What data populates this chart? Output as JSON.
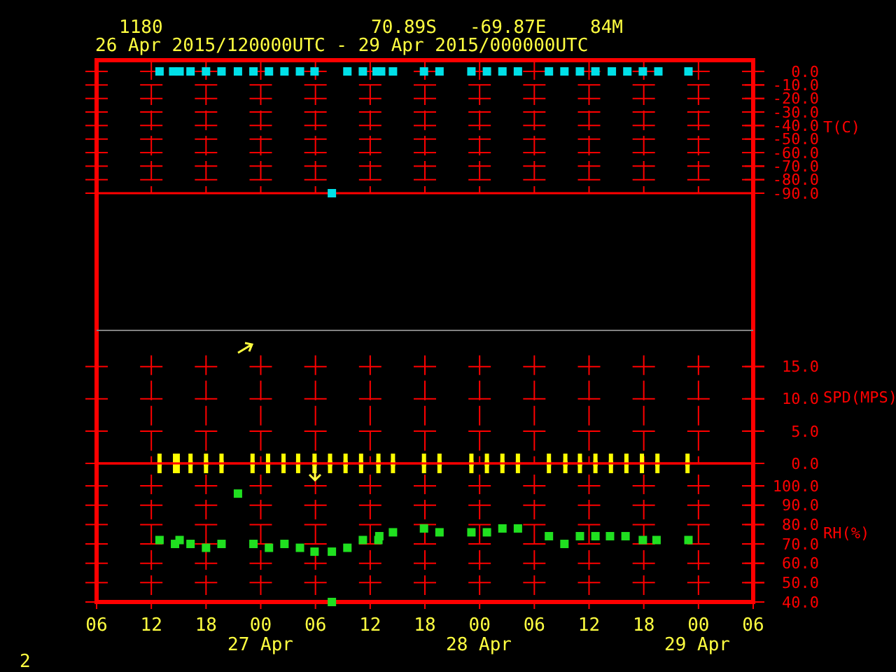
{
  "chart_data": [
    {
      "type": "scatter",
      "title": "1180",
      "subtitle": "26 Apr 2015/120000UTC - 29 Apr 2015/000000UTC",
      "annotations": [
        "70.89S   -69.87E    84M"
      ],
      "ylabel": "T(C)",
      "xlim": [
        6,
        78
      ],
      "xticks": [
        {
          "value": 6,
          "label": null
        },
        {
          "value": 12,
          "label": null
        },
        {
          "value": 18,
          "label": null
        },
        {
          "value": 24,
          "label": null
        },
        {
          "value": 30,
          "label": null
        },
        {
          "value": 36,
          "label": null
        },
        {
          "value": 42,
          "label": null
        },
        {
          "value": 48,
          "label": null
        },
        {
          "value": 54,
          "label": null
        },
        {
          "value": 60,
          "label": null
        },
        {
          "value": 66,
          "label": null
        },
        {
          "value": 72,
          "label": null
        },
        {
          "value": 78,
          "label": null
        }
      ],
      "ylim": [
        -90,
        8.3
      ],
      "yticks": [
        {
          "value": 0,
          "label": "0.0"
        },
        {
          "value": -10,
          "label": "-10.0"
        },
        {
          "value": -20,
          "label": "-20.0"
        },
        {
          "value": -30,
          "label": "-30.0"
        },
        {
          "value": -40,
          "label": "-40.0"
        },
        {
          "value": -50,
          "label": "-50.0"
        },
        {
          "value": -60,
          "label": "-60.0"
        },
        {
          "value": -70,
          "label": "-70.0"
        },
        {
          "value": -80,
          "label": "-80.0"
        },
        {
          "value": -90,
          "label": "-90.0"
        }
      ],
      "tick_labels": "y",
      "grid": true,
      "marker": "square",
      "series": [
        {
          "color": "#00e0e8",
          "x": [
            12.9,
            14.4,
            15.1,
            16.3,
            18.0,
            19.7,
            21.5,
            23.2,
            24.9,
            26.6,
            28.3,
            29.9,
            31.8,
            33.5,
            35.2,
            36.7,
            37.2,
            38.5,
            41.9,
            43.6,
            47.1,
            48.8,
            50.5,
            52.2,
            55.6,
            57.3,
            59.0,
            60.7,
            62.5,
            64.2,
            65.9,
            67.6,
            70.9
          ],
          "values": [
            0,
            0,
            0,
            0,
            0,
            0,
            0,
            0,
            0,
            0,
            0,
            0,
            -90,
            0,
            0,
            0,
            0,
            0,
            0,
            0,
            0,
            0,
            0,
            0,
            0,
            0,
            0,
            0,
            0,
            0,
            0,
            0,
            0
          ]
        }
      ]
    },
    {
      "type": "scatter",
      "ylabel": "SPD(MPS)",
      "xlim": [
        6,
        78
      ],
      "xticks": [
        {
          "value": 6,
          "label": null
        },
        {
          "value": 12,
          "label": null
        },
        {
          "value": 18,
          "label": null
        },
        {
          "value": 24,
          "label": null
        },
        {
          "value": 30,
          "label": null
        },
        {
          "value": 36,
          "label": null
        },
        {
          "value": 42,
          "label": null
        },
        {
          "value": 48,
          "label": null
        },
        {
          "value": 54,
          "label": null
        },
        {
          "value": 60,
          "label": null
        },
        {
          "value": 66,
          "label": null
        },
        {
          "value": 72,
          "label": null
        },
        {
          "value": 78,
          "label": null
        }
      ],
      "ylim": [
        0,
        20.6
      ],
      "yticks": [
        {
          "value": 0,
          "label": "0.0"
        },
        {
          "value": 5,
          "label": "5.0"
        },
        {
          "value": 10,
          "label": "10.0"
        },
        {
          "value": 15,
          "label": "15.0"
        }
      ],
      "tick_labels": "y",
      "grid": true,
      "series": [
        {
          "color": "#ffff00",
          "x": [
            12.9,
            14.6,
            14.9,
            16.3,
            18.0,
            19.7,
            23.1,
            24.8,
            26.5,
            28.1,
            29.9,
            31.6,
            33.3,
            35.0,
            36.9,
            38.5,
            41.9,
            43.6,
            47.1,
            48.8,
            50.5,
            52.2,
            55.6,
            57.4,
            59.0,
            60.7,
            62.4,
            64.1,
            65.8,
            67.5,
            70.8
          ],
          "values": [
            0,
            0,
            0,
            0,
            0,
            0,
            0,
            0,
            0,
            0,
            0,
            0,
            0,
            0,
            0,
            0,
            0,
            0,
            0,
            0,
            0,
            0,
            0,
            0,
            0,
            0,
            0,
            0,
            0,
            0,
            0
          ]
        }
      ]
    },
    {
      "type": "scatter",
      "ylabel": "RH(%)",
      "annotations": [
        "2",
        "27 Apr",
        "28 Apr",
        "29 Apr"
      ],
      "xlim": [
        6,
        78
      ],
      "xticks": [
        {
          "value": 6,
          "label": "06"
        },
        {
          "value": 12,
          "label": "12"
        },
        {
          "value": 18,
          "label": "18"
        },
        {
          "value": 24,
          "label": "00"
        },
        {
          "value": 30,
          "label": "06"
        },
        {
          "value": 36,
          "label": "12"
        },
        {
          "value": 42,
          "label": "18"
        },
        {
          "value": 48,
          "label": "00"
        },
        {
          "value": 54,
          "label": "06"
        },
        {
          "value": 60,
          "label": "12"
        },
        {
          "value": 66,
          "label": "18"
        },
        {
          "value": 72,
          "label": "00"
        },
        {
          "value": 78,
          "label": "06"
        }
      ],
      "ylim": [
        40,
        111.6
      ],
      "yticks": [
        {
          "value": 100,
          "label": "100.0"
        },
        {
          "value": 90,
          "label": "90.0"
        },
        {
          "value": 80,
          "label": "80.0"
        },
        {
          "value": 70,
          "label": "70.0"
        },
        {
          "value": 60,
          "label": "60.0"
        },
        {
          "value": 50,
          "label": "50.0"
        },
        {
          "value": 40,
          "label": "40.0"
        }
      ],
      "grid": true,
      "marker": "square",
      "series": [
        {
          "color": "#20e020",
          "x": [
            12.9,
            14.6,
            15.1,
            16.3,
            18.0,
            19.7,
            21.5,
            23.2,
            24.9,
            26.6,
            28.3,
            29.9,
            31.8,
            31.8,
            33.5,
            35.2,
            36.9,
            37.0,
            38.5,
            41.9,
            43.6,
            47.1,
            48.8,
            50.5,
            52.2,
            55.6,
            57.3,
            59.0,
            60.7,
            62.3,
            64.0,
            65.9,
            67.4,
            70.9
          ],
          "values": [
            72,
            70,
            72,
            70,
            68,
            70,
            96,
            70,
            68,
            70,
            68,
            66,
            66,
            40,
            68,
            72,
            72,
            74,
            76,
            78,
            76,
            76,
            76,
            78,
            78,
            74,
            70,
            74,
            74,
            74,
            74,
            72,
            72,
            72
          ]
        }
      ]
    }
  ]
}
